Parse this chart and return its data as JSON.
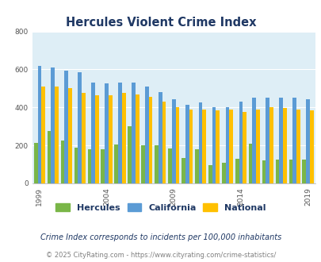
{
  "title": "Hercules Violent Crime Index",
  "years": [
    1999,
    2000,
    2001,
    2002,
    2003,
    2004,
    2005,
    2006,
    2007,
    2008,
    2009,
    2010,
    2011,
    2012,
    2013,
    2014,
    2015,
    2016,
    2017,
    2018,
    2019
  ],
  "hercules": [
    215,
    275,
    225,
    190,
    180,
    180,
    205,
    300,
    200,
    200,
    185,
    135,
    180,
    95,
    110,
    130,
    210,
    120,
    125,
    125,
    125
  ],
  "california": [
    620,
    610,
    595,
    585,
    530,
    525,
    530,
    530,
    510,
    480,
    445,
    415,
    425,
    400,
    400,
    430,
    450,
    450,
    450,
    450,
    445
  ],
  "national": [
    510,
    510,
    500,
    475,
    465,
    465,
    475,
    470,
    455,
    430,
    400,
    390,
    390,
    385,
    390,
    375,
    390,
    400,
    395,
    390,
    385
  ],
  "hercules_color": "#7ab648",
  "california_color": "#5b9bd5",
  "national_color": "#ffc000",
  "bg_color": "#deeef6",
  "ylim": [
    0,
    800
  ],
  "yticks": [
    0,
    200,
    400,
    600,
    800
  ],
  "xtick_years": [
    1999,
    2004,
    2009,
    2014,
    2019
  ],
  "legend_labels": [
    "Hercules",
    "California",
    "National"
  ],
  "footnote1": "Crime Index corresponds to incidents per 100,000 inhabitants",
  "footnote2": "© 2025 CityRating.com - https://www.cityrating.com/crime-statistics/",
  "title_color": "#1f3864",
  "footnote1_color": "#1f3864",
  "footnote2_color": "#808080"
}
